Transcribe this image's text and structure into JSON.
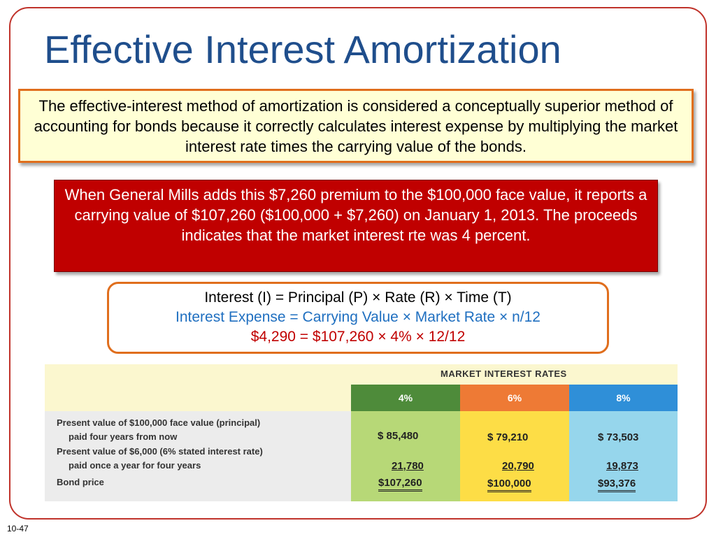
{
  "slide": {
    "title": "Effective Interest Amortization",
    "footer": "10-47"
  },
  "intro_box": {
    "text": "The effective-interest method of amortization is considered a conceptually superior method of accounting for bonds because it correctly calculates interest expense by multiplying the market interest rate times the carrying value of the bonds."
  },
  "red_box": {
    "text": "When General Mills adds this $7,260 premium to the $100,000 face value, it reports a carrying value of $107,260 ($100,000 + $7,260) on January 1, 2013. The proceeds indicates that the market interest rte was 4 percent."
  },
  "formula": {
    "line1": "Interest (I) = Principal (P)  × Rate (R) × Time (T)",
    "line2": "Interest Expense = Carrying Value × Market Rate × n/12",
    "line3": "$4,290  =  $107,260 × 4% × 12/12"
  },
  "table": {
    "header": "MARKET INTEREST RATES",
    "columns": [
      "4%",
      "6%",
      "8%"
    ],
    "rows": [
      {
        "label1": "Present value of $100,000 face value (principal)",
        "label2": "paid four years from now",
        "values": [
          "$  85,480",
          "$   79,210",
          "$ 73,503"
        ]
      },
      {
        "label1": "Present value of $6,000 (6% stated interest rate)",
        "label2": "paid once a year for four years",
        "values": [
          "21,780",
          "20,790",
          "19,873"
        ]
      },
      {
        "label1": "Bond price",
        "values": [
          "$107,260",
          "$100,000",
          "$93,376"
        ]
      }
    ],
    "colors": {
      "col1_head": "#4e8b3a",
      "col2_head": "#ee7a35",
      "col3_head": "#2f8fd8",
      "col1_body": "#b7d877",
      "col2_body": "#fddd46",
      "col3_body": "#96d6ec"
    }
  }
}
